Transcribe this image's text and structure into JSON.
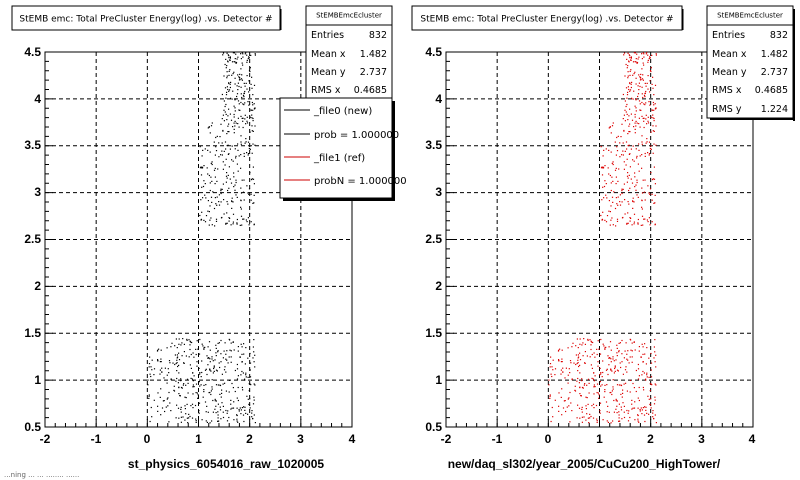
{
  "chart_data": [
    {
      "type": "scatter",
      "title": "StEMB emc: Total PreCluster Energy(log) .vs. Detector #",
      "xlabel": "st_physics_6054016_raw_1020005",
      "xlim": [
        -2,
        4
      ],
      "ylim": [
        0.5,
        4.5
      ],
      "xticks": [
        "-2",
        "-1",
        "0",
        "1",
        "2",
        "3",
        "4"
      ],
      "yticks": [
        "0.5",
        "1",
        "1.5",
        "2",
        "2.5",
        "3",
        "3.5",
        "4",
        "4.5"
      ],
      "grid": true,
      "marker_color": "#000000",
      "clusters": [
        {
          "x": [
            0.0,
            2.1
          ],
          "y": [
            0.55,
            1.45
          ],
          "density": 420
        },
        {
          "x": [
            1.0,
            2.1
          ],
          "y": [
            2.65,
            3.75
          ],
          "density": 230
        },
        {
          "x": [
            1.45,
            2.1
          ],
          "y": [
            3.7,
            4.5
          ],
          "density": 180
        }
      ],
      "stats": {
        "title": "StEMBEmcEcluster",
        "rows": [
          {
            "label": "Entries",
            "value": "832"
          },
          {
            "label": "Mean x",
            "value": "1.482"
          },
          {
            "label": "Mean y",
            "value": "2.737"
          },
          {
            "label": "RMS x",
            "value": "0.4685"
          }
        ]
      },
      "legend": {
        "position": "top-right",
        "entries": [
          {
            "label": "_file0 (new)",
            "color": "#000000"
          },
          {
            "label": "prob = 1.000000",
            "color": "#000000"
          },
          {
            "label": "_file1 (ref)",
            "color": "#cc0000"
          },
          {
            "label": "probN = 1.000000",
            "color": "#cc0000"
          }
        ]
      }
    },
    {
      "type": "scatter",
      "title": "StEMB emc: Total PreCluster Energy(log) .vs. Detector #",
      "xlabel": "new/daq_sl302/year_2005/CuCu200_HighTower/",
      "xlim": [
        -2,
        4
      ],
      "ylim": [
        0.5,
        4.5
      ],
      "xticks": [
        "-2",
        "-1",
        "0",
        "1",
        "2",
        "3",
        "4"
      ],
      "yticks": [
        "0.5",
        "1",
        "1.5",
        "2",
        "2.5",
        "3",
        "3.5",
        "4",
        "4.5"
      ],
      "grid": true,
      "marker_color": "#dd0000",
      "clusters": [
        {
          "x": [
            0.0,
            2.1
          ],
          "y": [
            0.55,
            1.45
          ],
          "density": 420
        },
        {
          "x": [
            1.0,
            2.1
          ],
          "y": [
            2.65,
            3.75
          ],
          "density": 230
        },
        {
          "x": [
            1.45,
            2.1
          ],
          "y": [
            3.7,
            4.5
          ],
          "density": 180
        }
      ],
      "stats": {
        "title": "StEMBEmcEcluster",
        "rows": [
          {
            "label": "Entries",
            "value": "832"
          },
          {
            "label": "Mean x",
            "value": "1.482"
          },
          {
            "label": "Mean y",
            "value": "2.737"
          },
          {
            "label": "RMS x",
            "value": "0.4685"
          },
          {
            "label": "RMS y",
            "value": "1.224"
          }
        ]
      }
    }
  ],
  "footer": "...ning ... ... ........ ......"
}
